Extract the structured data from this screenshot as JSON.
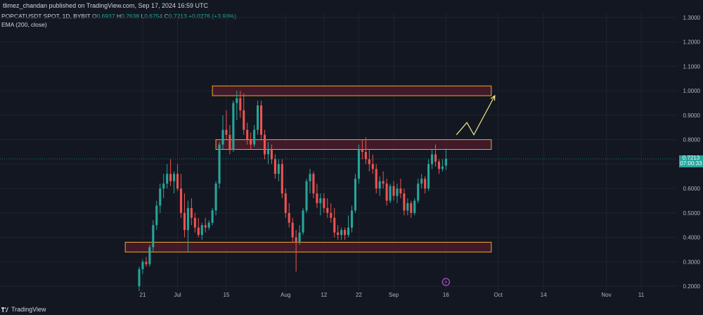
{
  "header": {
    "published": "tlimez_chandan published on TradingView.com, Sep 17, 2024 16:59 UTC"
  },
  "legend": {
    "symbol": "POPCATUSDT SPOT, 1D, BYBIT",
    "o_label": "O",
    "o_value": "0.6937",
    "h_label": "H",
    "h_value": "0.7638",
    "l_label": "L",
    "l_value": "0.6754",
    "c_label": "C",
    "c_value": "0.7213",
    "change": "+0.0276 (+3.98%)",
    "ema": "EMA (200, close)"
  },
  "price_tag": {
    "price": "0.7213",
    "countdown": "07:00:33"
  },
  "footer": {
    "brand": "TradingView"
  },
  "colors": {
    "background": "#131722",
    "up": "#26a69a",
    "down": "#ef5350",
    "zone_fill": "#4a1b2c",
    "zone_border": "#f0a81e",
    "projection": "#f3e98a",
    "event_icon": "#b24dcc"
  },
  "chart_data": {
    "type": "candlestick",
    "title": "POPCATUSDT SPOT, 1D, BYBIT",
    "y_ticks": [
      0.2,
      0.3,
      0.4,
      0.5,
      0.6,
      0.7,
      0.8,
      0.9,
      1.0,
      1.1,
      1.2,
      1.3
    ],
    "y_tick_labels": [
      "0.2000",
      "0.3000",
      "0.4000",
      "0.5000",
      "0.6000",
      "0.7000",
      "0.8000",
      "0.9000",
      "1.0000",
      "1.1000",
      "1.2000",
      "1.3000"
    ],
    "ylim": [
      0.18,
      1.32
    ],
    "x_start": "2024-06-20",
    "x_end": "2024-11-13",
    "x_ticks": [
      {
        "date": "2024-06-21",
        "label": "21"
      },
      {
        "date": "2024-07-01",
        "label": "Jul"
      },
      {
        "date": "2024-07-15",
        "label": "15"
      },
      {
        "date": "2024-08-01",
        "label": "Aug"
      },
      {
        "date": "2024-08-12",
        "label": "12"
      },
      {
        "date": "2024-08-22",
        "label": "22"
      },
      {
        "date": "2024-09-01",
        "label": "Sep"
      },
      {
        "date": "2024-09-16",
        "label": "16"
      },
      {
        "date": "2024-10-01",
        "label": "Oct"
      },
      {
        "date": "2024-10-14",
        "label": "14"
      },
      {
        "date": "2024-11-01",
        "label": "Nov"
      },
      {
        "date": "2024-11-11",
        "label": "11"
      }
    ],
    "grid": true,
    "zones": [
      {
        "from": "2024-07-11",
        "to": "2024-09-29",
        "low": 0.98,
        "high": 1.02
      },
      {
        "from": "2024-07-12",
        "to": "2024-09-29",
        "low": 0.76,
        "high": 0.8
      },
      {
        "from": "2024-06-16",
        "to": "2024-09-29",
        "low": 0.34,
        "high": 0.38
      }
    ],
    "projection": [
      {
        "date": "2024-09-19",
        "y": 0.82
      },
      {
        "date": "2024-09-22",
        "y": 0.87
      },
      {
        "date": "2024-09-24",
        "y": 0.82
      },
      {
        "date": "2024-09-30",
        "y": 0.98
      }
    ],
    "candles": [
      {
        "d": "2024-06-20",
        "o": 0.2,
        "h": 0.28,
        "l": 0.18,
        "c": 0.27
      },
      {
        "d": "2024-06-21",
        "o": 0.27,
        "h": 0.31,
        "l": 0.25,
        "c": 0.3
      },
      {
        "d": "2024-06-22",
        "o": 0.3,
        "h": 0.32,
        "l": 0.28,
        "c": 0.29
      },
      {
        "d": "2024-06-23",
        "o": 0.29,
        "h": 0.37,
        "l": 0.28,
        "c": 0.36
      },
      {
        "d": "2024-06-24",
        "o": 0.36,
        "h": 0.47,
        "l": 0.34,
        "c": 0.45
      },
      {
        "d": "2024-06-25",
        "o": 0.45,
        "h": 0.55,
        "l": 0.43,
        "c": 0.53
      },
      {
        "d": "2024-06-26",
        "o": 0.53,
        "h": 0.62,
        "l": 0.5,
        "c": 0.6
      },
      {
        "d": "2024-06-27",
        "o": 0.6,
        "h": 0.66,
        "l": 0.56,
        "c": 0.62
      },
      {
        "d": "2024-06-28",
        "o": 0.62,
        "h": 0.7,
        "l": 0.6,
        "c": 0.66
      },
      {
        "d": "2024-06-29",
        "o": 0.66,
        "h": 0.72,
        "l": 0.61,
        "c": 0.63
      },
      {
        "d": "2024-06-30",
        "o": 0.63,
        "h": 0.67,
        "l": 0.58,
        "c": 0.66
      },
      {
        "d": "2024-07-01",
        "o": 0.66,
        "h": 0.7,
        "l": 0.59,
        "c": 0.6
      },
      {
        "d": "2024-07-02",
        "o": 0.6,
        "h": 0.66,
        "l": 0.48,
        "c": 0.5
      },
      {
        "d": "2024-07-03",
        "o": 0.5,
        "h": 0.58,
        "l": 0.4,
        "c": 0.43
      },
      {
        "d": "2024-07-04",
        "o": 0.43,
        "h": 0.55,
        "l": 0.34,
        "c": 0.52
      },
      {
        "d": "2024-07-05",
        "o": 0.52,
        "h": 0.56,
        "l": 0.45,
        "c": 0.48
      },
      {
        "d": "2024-07-06",
        "o": 0.48,
        "h": 0.5,
        "l": 0.42,
        "c": 0.44
      },
      {
        "d": "2024-07-07",
        "o": 0.44,
        "h": 0.48,
        "l": 0.4,
        "c": 0.41
      },
      {
        "d": "2024-07-08",
        "o": 0.41,
        "h": 0.46,
        "l": 0.39,
        "c": 0.45
      },
      {
        "d": "2024-07-09",
        "o": 0.45,
        "h": 0.48,
        "l": 0.42,
        "c": 0.44
      },
      {
        "d": "2024-07-10",
        "o": 0.44,
        "h": 0.47,
        "l": 0.43,
        "c": 0.46
      },
      {
        "d": "2024-07-11",
        "o": 0.46,
        "h": 0.52,
        "l": 0.45,
        "c": 0.51
      },
      {
        "d": "2024-07-12",
        "o": 0.51,
        "h": 0.63,
        "l": 0.49,
        "c": 0.62
      },
      {
        "d": "2024-07-13",
        "o": 0.62,
        "h": 0.79,
        "l": 0.6,
        "c": 0.78
      },
      {
        "d": "2024-07-14",
        "o": 0.78,
        "h": 0.9,
        "l": 0.76,
        "c": 0.84
      },
      {
        "d": "2024-07-15",
        "o": 0.84,
        "h": 0.92,
        "l": 0.8,
        "c": 0.82
      },
      {
        "d": "2024-07-16",
        "o": 0.82,
        "h": 0.86,
        "l": 0.74,
        "c": 0.76
      },
      {
        "d": "2024-07-17",
        "o": 0.76,
        "h": 0.96,
        "l": 0.75,
        "c": 0.95
      },
      {
        "d": "2024-07-18",
        "o": 0.95,
        "h": 1.0,
        "l": 0.88,
        "c": 0.97
      },
      {
        "d": "2024-07-19",
        "o": 0.97,
        "h": 1.0,
        "l": 0.89,
        "c": 0.92
      },
      {
        "d": "2024-07-20",
        "o": 0.92,
        "h": 0.99,
        "l": 0.82,
        "c": 0.84
      },
      {
        "d": "2024-07-21",
        "o": 0.84,
        "h": 0.87,
        "l": 0.78,
        "c": 0.8
      },
      {
        "d": "2024-07-22",
        "o": 0.8,
        "h": 0.83,
        "l": 0.76,
        "c": 0.78
      },
      {
        "d": "2024-07-23",
        "o": 0.78,
        "h": 0.86,
        "l": 0.77,
        "c": 0.84
      },
      {
        "d": "2024-07-24",
        "o": 0.84,
        "h": 0.96,
        "l": 0.82,
        "c": 0.94
      },
      {
        "d": "2024-07-25",
        "o": 0.94,
        "h": 0.96,
        "l": 0.8,
        "c": 0.82
      },
      {
        "d": "2024-07-26",
        "o": 0.82,
        "h": 0.84,
        "l": 0.72,
        "c": 0.74
      },
      {
        "d": "2024-07-27",
        "o": 0.74,
        "h": 0.79,
        "l": 0.7,
        "c": 0.76
      },
      {
        "d": "2024-07-28",
        "o": 0.76,
        "h": 0.78,
        "l": 0.7,
        "c": 0.72
      },
      {
        "d": "2024-07-29",
        "o": 0.72,
        "h": 0.74,
        "l": 0.64,
        "c": 0.66
      },
      {
        "d": "2024-07-30",
        "o": 0.66,
        "h": 0.72,
        "l": 0.63,
        "c": 0.7
      },
      {
        "d": "2024-07-31",
        "o": 0.7,
        "h": 0.72,
        "l": 0.56,
        "c": 0.58
      },
      {
        "d": "2024-08-01",
        "o": 0.58,
        "h": 0.6,
        "l": 0.48,
        "c": 0.5
      },
      {
        "d": "2024-08-02",
        "o": 0.5,
        "h": 0.54,
        "l": 0.44,
        "c": 0.46
      },
      {
        "d": "2024-08-03",
        "o": 0.46,
        "h": 0.48,
        "l": 0.38,
        "c": 0.4
      },
      {
        "d": "2024-08-04",
        "o": 0.4,
        "h": 0.43,
        "l": 0.26,
        "c": 0.38
      },
      {
        "d": "2024-08-05",
        "o": 0.38,
        "h": 0.45,
        "l": 0.37,
        "c": 0.42
      },
      {
        "d": "2024-08-06",
        "o": 0.42,
        "h": 0.52,
        "l": 0.41,
        "c": 0.51
      },
      {
        "d": "2024-08-07",
        "o": 0.51,
        "h": 0.64,
        "l": 0.5,
        "c": 0.63
      },
      {
        "d": "2024-08-08",
        "o": 0.63,
        "h": 0.68,
        "l": 0.58,
        "c": 0.66
      },
      {
        "d": "2024-08-09",
        "o": 0.66,
        "h": 0.67,
        "l": 0.56,
        "c": 0.58
      },
      {
        "d": "2024-08-10",
        "o": 0.58,
        "h": 0.62,
        "l": 0.52,
        "c": 0.54
      },
      {
        "d": "2024-08-11",
        "o": 0.54,
        "h": 0.58,
        "l": 0.49,
        "c": 0.56
      },
      {
        "d": "2024-08-12",
        "o": 0.56,
        "h": 0.58,
        "l": 0.5,
        "c": 0.52
      },
      {
        "d": "2024-08-13",
        "o": 0.52,
        "h": 0.56,
        "l": 0.48,
        "c": 0.5
      },
      {
        "d": "2024-08-14",
        "o": 0.5,
        "h": 0.54,
        "l": 0.46,
        "c": 0.48
      },
      {
        "d": "2024-08-15",
        "o": 0.48,
        "h": 0.52,
        "l": 0.4,
        "c": 0.42
      },
      {
        "d": "2024-08-16",
        "o": 0.42,
        "h": 0.45,
        "l": 0.39,
        "c": 0.41
      },
      {
        "d": "2024-08-17",
        "o": 0.41,
        "h": 0.44,
        "l": 0.39,
        "c": 0.43
      },
      {
        "d": "2024-08-18",
        "o": 0.43,
        "h": 0.44,
        "l": 0.39,
        "c": 0.41
      },
      {
        "d": "2024-08-19",
        "o": 0.41,
        "h": 0.49,
        "l": 0.4,
        "c": 0.44
      },
      {
        "d": "2024-08-20",
        "o": 0.44,
        "h": 0.53,
        "l": 0.42,
        "c": 0.51
      },
      {
        "d": "2024-08-21",
        "o": 0.51,
        "h": 0.66,
        "l": 0.5,
        "c": 0.64
      },
      {
        "d": "2024-08-22",
        "o": 0.64,
        "h": 0.78,
        "l": 0.62,
        "c": 0.76
      },
      {
        "d": "2024-08-23",
        "o": 0.76,
        "h": 0.8,
        "l": 0.72,
        "c": 0.75
      },
      {
        "d": "2024-08-24",
        "o": 0.75,
        "h": 0.81,
        "l": 0.7,
        "c": 0.72
      },
      {
        "d": "2024-08-25",
        "o": 0.72,
        "h": 0.76,
        "l": 0.67,
        "c": 0.7
      },
      {
        "d": "2024-08-26",
        "o": 0.7,
        "h": 0.74,
        "l": 0.66,
        "c": 0.68
      },
      {
        "d": "2024-08-27",
        "o": 0.68,
        "h": 0.7,
        "l": 0.58,
        "c": 0.6
      },
      {
        "d": "2024-08-28",
        "o": 0.6,
        "h": 0.65,
        "l": 0.57,
        "c": 0.63
      },
      {
        "d": "2024-08-29",
        "o": 0.63,
        "h": 0.67,
        "l": 0.6,
        "c": 0.62
      },
      {
        "d": "2024-08-30",
        "o": 0.62,
        "h": 0.64,
        "l": 0.53,
        "c": 0.55
      },
      {
        "d": "2024-08-31",
        "o": 0.55,
        "h": 0.62,
        "l": 0.54,
        "c": 0.61
      },
      {
        "d": "2024-09-01",
        "o": 0.61,
        "h": 0.63,
        "l": 0.55,
        "c": 0.57
      },
      {
        "d": "2024-09-02",
        "o": 0.57,
        "h": 0.62,
        "l": 0.54,
        "c": 0.6
      },
      {
        "d": "2024-09-03",
        "o": 0.6,
        "h": 0.64,
        "l": 0.56,
        "c": 0.58
      },
      {
        "d": "2024-09-04",
        "o": 0.58,
        "h": 0.6,
        "l": 0.49,
        "c": 0.51
      },
      {
        "d": "2024-09-05",
        "o": 0.51,
        "h": 0.56,
        "l": 0.49,
        "c": 0.54
      },
      {
        "d": "2024-09-06",
        "o": 0.54,
        "h": 0.55,
        "l": 0.48,
        "c": 0.5
      },
      {
        "d": "2024-09-07",
        "o": 0.5,
        "h": 0.56,
        "l": 0.49,
        "c": 0.55
      },
      {
        "d": "2024-09-08",
        "o": 0.55,
        "h": 0.64,
        "l": 0.54,
        "c": 0.62
      },
      {
        "d": "2024-09-09",
        "o": 0.62,
        "h": 0.66,
        "l": 0.6,
        "c": 0.64
      },
      {
        "d": "2024-09-10",
        "o": 0.64,
        "h": 0.65,
        "l": 0.58,
        "c": 0.6
      },
      {
        "d": "2024-09-11",
        "o": 0.6,
        "h": 0.72,
        "l": 0.59,
        "c": 0.7
      },
      {
        "d": "2024-09-12",
        "o": 0.7,
        "h": 0.76,
        "l": 0.68,
        "c": 0.74
      },
      {
        "d": "2024-09-13",
        "o": 0.74,
        "h": 0.78,
        "l": 0.69,
        "c": 0.71
      },
      {
        "d": "2024-09-14",
        "o": 0.71,
        "h": 0.72,
        "l": 0.66,
        "c": 0.68
      },
      {
        "d": "2024-09-15",
        "o": 0.68,
        "h": 0.72,
        "l": 0.67,
        "c": 0.69
      },
      {
        "d": "2024-09-16",
        "o": 0.6937,
        "h": 0.7638,
        "l": 0.6754,
        "c": 0.7213
      }
    ]
  }
}
